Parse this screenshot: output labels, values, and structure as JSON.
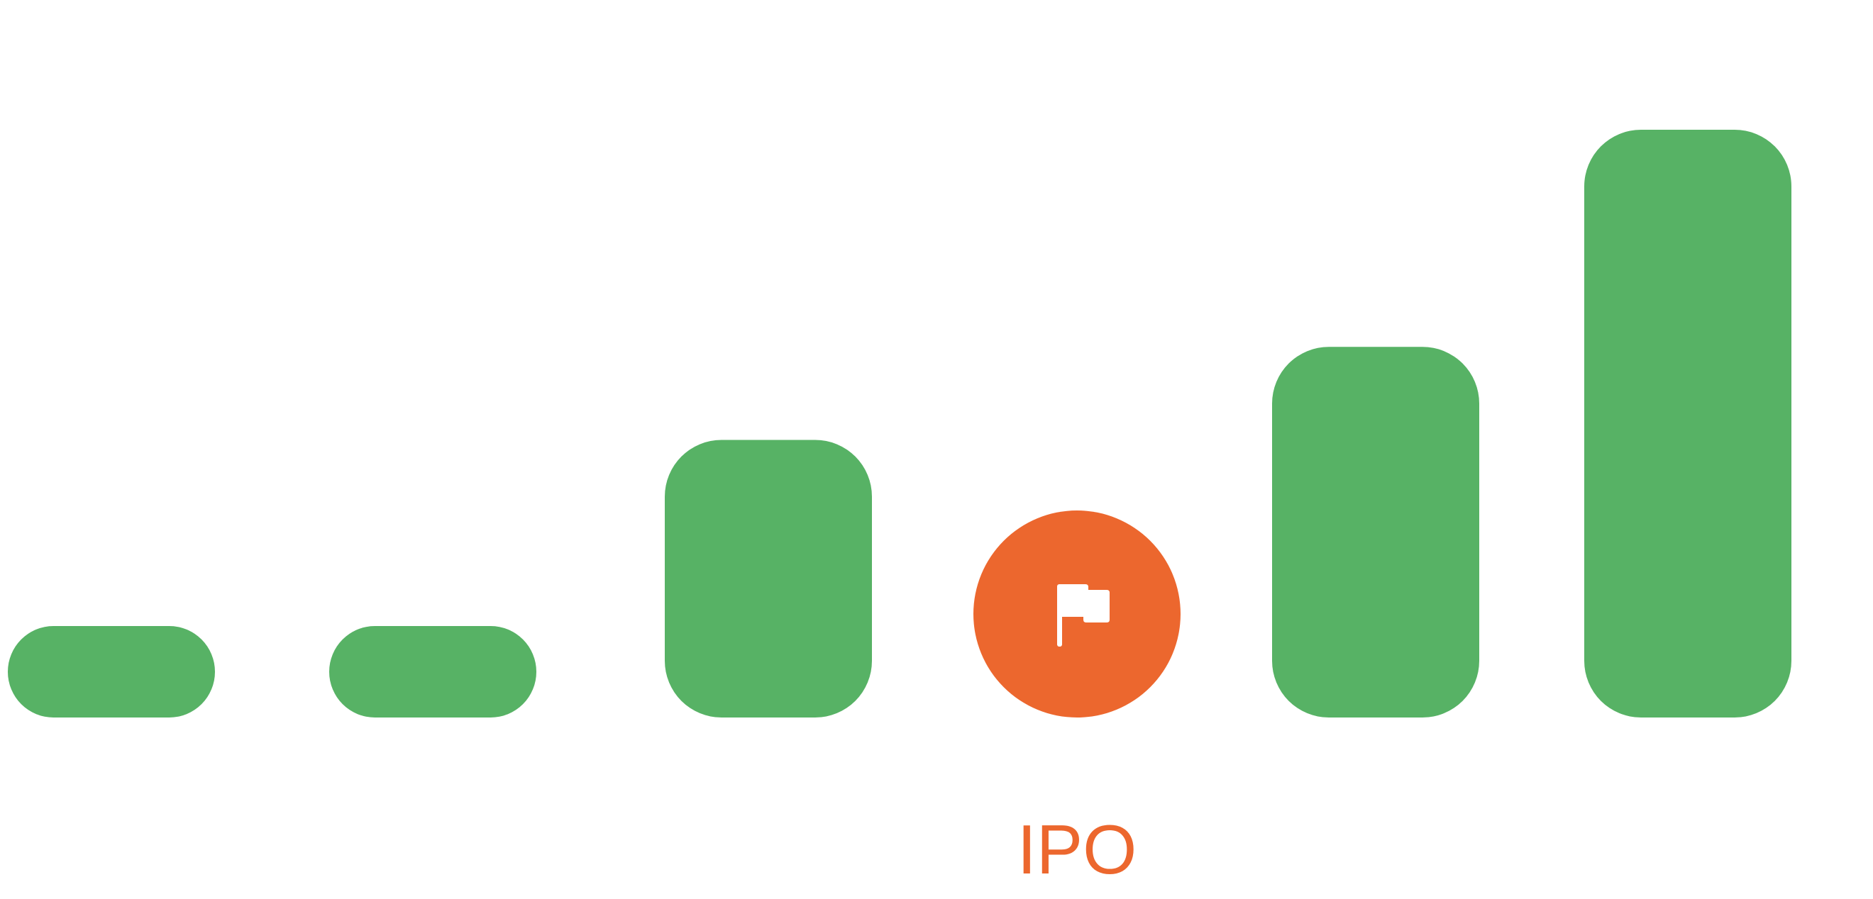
{
  "chart_data": {
    "type": "bar",
    "categories": [
      "",
      "",
      "",
      "IPO",
      "",
      ""
    ],
    "values": [
      1,
      1,
      4,
      3,
      5.5,
      9
    ],
    "highlight": {
      "index": 3,
      "label": "IPO",
      "icon": "flag-icon",
      "color": "#EC672E"
    },
    "bar_color": "#57B265",
    "title": "",
    "xlabel": "",
    "ylabel": "",
    "grid": false,
    "legend": "none"
  }
}
